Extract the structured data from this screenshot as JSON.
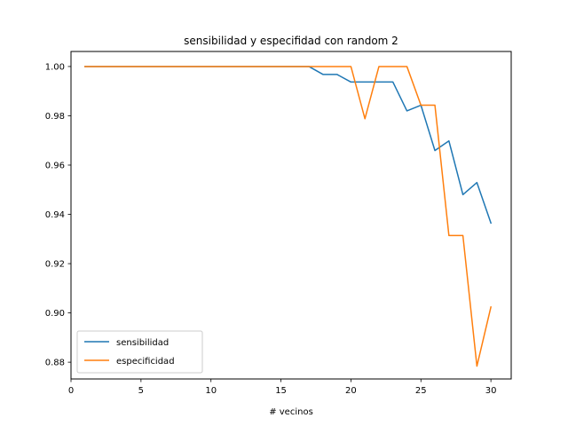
{
  "chart_data": {
    "type": "line",
    "title": "sensibilidad y especifidad con random 2",
    "xlabel": "# vecinos",
    "ylabel": "",
    "xlim": [
      0,
      31.45
    ],
    "ylim": [
      0.8732,
      1.0061
    ],
    "xticks": [
      0,
      5,
      10,
      15,
      20,
      25,
      30
    ],
    "yticks": [
      0.88,
      0.9,
      0.92,
      0.94,
      0.96,
      0.98,
      1.0
    ],
    "xtick_labels": [
      "0",
      "5",
      "10",
      "15",
      "20",
      "25",
      "30"
    ],
    "ytick_labels": [
      "0.88",
      "0.90",
      "0.92",
      "0.94",
      "0.96",
      "0.98",
      "1.00"
    ],
    "legend_position": "lower-left",
    "grid": false,
    "x": [
      1,
      2,
      3,
      4,
      5,
      6,
      7,
      8,
      9,
      10,
      11,
      12,
      13,
      14,
      15,
      16,
      17,
      18,
      19,
      20,
      21,
      22,
      23,
      24,
      25,
      26,
      27,
      28,
      29,
      30
    ],
    "series": [
      {
        "name": "sensibilidad",
        "color": "#1f77b4",
        "values": [
          1.0,
          1.0,
          1.0,
          1.0,
          1.0,
          1.0,
          1.0,
          1.0,
          1.0,
          1.0,
          1.0,
          1.0,
          1.0,
          1.0,
          1.0,
          1.0,
          1.0,
          0.9968,
          0.9968,
          0.9937,
          0.9937,
          0.9937,
          0.9937,
          0.982,
          0.9843,
          0.9659,
          0.9698,
          0.948,
          0.9529,
          0.9365
        ]
      },
      {
        "name": "especificidad",
        "color": "#ff7f0e",
        "values": [
          1.0,
          1.0,
          1.0,
          1.0,
          1.0,
          1.0,
          1.0,
          1.0,
          1.0,
          1.0,
          1.0,
          1.0,
          1.0,
          1.0,
          1.0,
          1.0,
          1.0,
          1.0,
          1.0,
          1.0,
          0.9788,
          1.0,
          1.0,
          1.0,
          0.9843,
          0.9843,
          0.9314,
          0.9314,
          0.8784,
          0.9024
        ]
      }
    ]
  }
}
